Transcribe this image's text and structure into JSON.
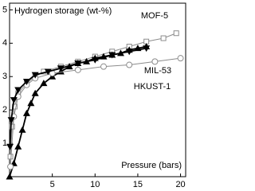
{
  "chart_data": {
    "type": "line",
    "title": "Hydrogen storage (wt-%)",
    "x_label": "Pressure (bars)",
    "xlim": [
      0,
      20.6
    ],
    "ylim": [
      0,
      5.2
    ],
    "xticks": [
      5,
      10,
      15,
      20
    ],
    "yticks": [
      1,
      2,
      3,
      4,
      5
    ],
    "grid": false,
    "series": [
      {
        "name": "MOF-5",
        "color": "#8c8c8c",
        "marker": "square",
        "x": [
          0.1,
          0.3,
          0.6,
          1,
          2,
          3,
          4,
          6,
          8,
          10,
          12,
          14,
          16,
          18,
          19.5
        ],
        "values": [
          0.6,
          1.5,
          2.1,
          2.5,
          2.8,
          3.0,
          3.15,
          3.3,
          3.45,
          3.6,
          3.75,
          3.9,
          4.05,
          4.15,
          4.3
        ]
      },
      {
        "name": "MIL-53",
        "color": "#000000",
        "marker": "triangle-up",
        "x": [
          0,
          0.5,
          1,
          1.5,
          2,
          2.5,
          3,
          4,
          5,
          6,
          7,
          8,
          9,
          10,
          11,
          12,
          13,
          14,
          15,
          16
        ],
        "values": [
          0,
          0.4,
          0.9,
          1.4,
          1.9,
          2.2,
          2.5,
          2.8,
          3.0,
          3.15,
          3.3,
          3.4,
          3.45,
          3.55,
          3.6,
          3.65,
          3.7,
          3.8,
          3.85,
          3.9
        ]
      },
      {
        "name": "HKUST-1",
        "color": "#8c8c8c",
        "marker": "circle",
        "x": [
          0.1,
          0.5,
          1,
          2,
          3,
          5,
          8,
          11,
          14,
          17,
          20
        ],
        "values": [
          0.3,
          1.8,
          2.4,
          2.75,
          2.95,
          3.1,
          3.2,
          3.3,
          3.35,
          3.45,
          3.55
        ]
      },
      {
        "color": "#000000",
        "marker": "triangle-down",
        "x": [
          16,
          14,
          12,
          10,
          8,
          6,
          4.5,
          3,
          2,
          1,
          0.5,
          0.2,
          0.05
        ],
        "values": [
          3.85,
          3.75,
          3.65,
          3.5,
          3.4,
          3.25,
          3.15,
          3.05,
          2.85,
          2.6,
          2.3,
          1.7,
          0.9
        ]
      }
    ]
  }
}
